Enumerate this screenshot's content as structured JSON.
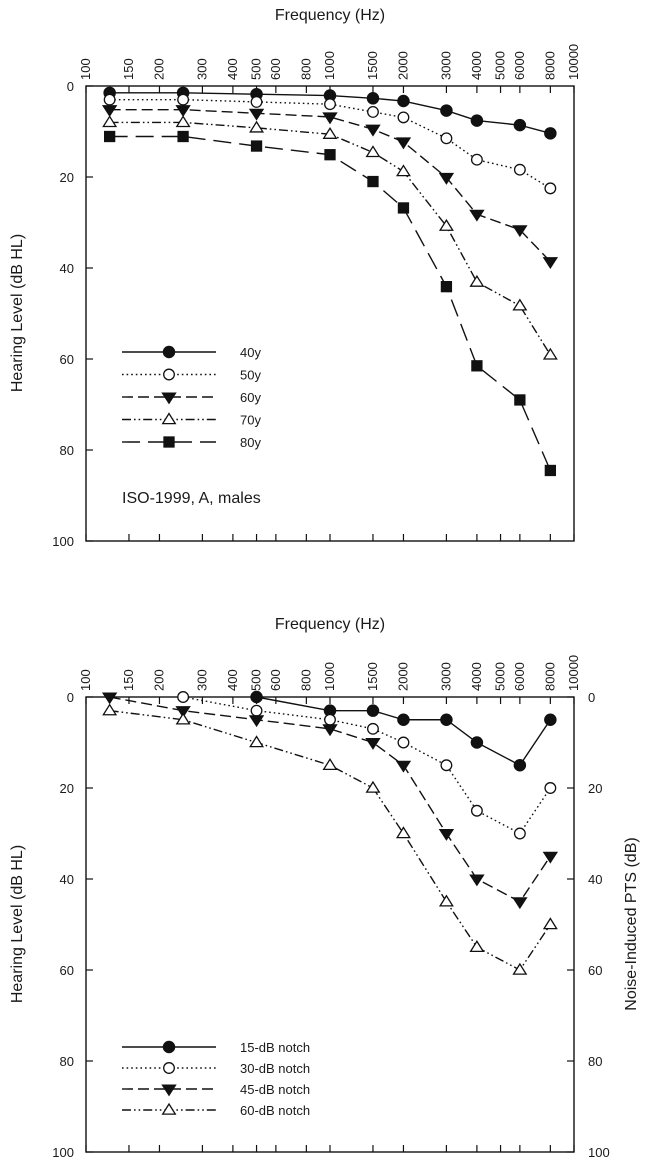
{
  "chart_data": [
    {
      "type": "line",
      "title": "",
      "xlabel": "Frequency (Hz)",
      "ylabel": "Hearing Level (dB HL)",
      "x_scale": "log",
      "xlim": [
        100,
        10000
      ],
      "ylim": [
        0,
        100
      ],
      "y_inverted": true,
      "x_tick_labels": [
        "100",
        "150",
        "200",
        "300",
        "400",
        "500",
        "600",
        "800",
        "1000",
        "1500",
        "2000",
        "3000",
        "4000",
        "5000",
        "6000",
        "8000",
        "10000"
      ],
      "y_tick_labels": [
        "0",
        "20",
        "40",
        "60",
        "80",
        "100"
      ],
      "x": [
        125,
        250,
        500,
        1000,
        1500,
        2000,
        3000,
        4000,
        6000,
        8000
      ],
      "legend_position": "lower-left",
      "annotation": "ISO-1999, A, males",
      "series": [
        {
          "name": "40y",
          "marker": "circle-filled",
          "dash": "solid",
          "values": [
            1.5,
            1.5,
            1.8,
            2.1,
            2.7,
            3.3,
            5.4,
            7.6,
            8.6,
            10.4
          ]
        },
        {
          "name": "50y",
          "marker": "circle-open",
          "dash": "dotted",
          "values": [
            3,
            3,
            3.5,
            4,
            5.7,
            6.9,
            11.5,
            16.2,
            18.4,
            22.5
          ]
        },
        {
          "name": "60y",
          "marker": "triangle-down-filled",
          "dash": "dashed",
          "values": [
            5.2,
            5.2,
            6,
            6.8,
            9.5,
            12.3,
            20.1,
            28.2,
            31.6,
            38.6
          ]
        },
        {
          "name": "70y",
          "marker": "triangle-up-open",
          "dash": "dash-dot-dot",
          "values": [
            8,
            8,
            9.2,
            10.6,
            14.6,
            18.8,
            30.8,
            43.1,
            48.3,
            59.1
          ]
        },
        {
          "name": "80y",
          "marker": "square-filled",
          "dash": "long-dash",
          "values": [
            11.1,
            11.1,
            13.2,
            15.1,
            21,
            26.8,
            44.1,
            61.5,
            69,
            84.5
          ]
        }
      ]
    },
    {
      "type": "line",
      "title": "",
      "xlabel": "Frequency (Hz)",
      "ylabel": "Hearing Level (dB HL)",
      "ylabel_right": "Noise-Induced PTS (dB)",
      "x_scale": "log",
      "xlim": [
        100,
        10000
      ],
      "ylim": [
        0,
        100
      ],
      "y_inverted": true,
      "x_tick_labels": [
        "100",
        "150",
        "200",
        "300",
        "400",
        "500",
        "600",
        "800",
        "1000",
        "1500",
        "2000",
        "3000",
        "4000",
        "5000",
        "6000",
        "8000",
        "10000"
      ],
      "y_tick_labels": [
        "0",
        "20",
        "40",
        "60",
        "80",
        "100"
      ],
      "legend_position": "lower-left",
      "series": [
        {
          "name": "15-dB notch",
          "marker": "circle-filled",
          "dash": "solid",
          "x": [
            500,
            1000,
            1500,
            2000,
            3000,
            4000,
            6000,
            8000
          ],
          "values": [
            0,
            3,
            3,
            5,
            5,
            10,
            15,
            5
          ]
        },
        {
          "name": "30-dB notch",
          "marker": "circle-open",
          "dash": "dotted",
          "x": [
            250,
            500,
            1000,
            1500,
            2000,
            3000,
            4000,
            6000,
            8000
          ],
          "values": [
            0,
            3,
            5,
            7,
            10,
            15,
            25,
            30,
            20
          ]
        },
        {
          "name": "45-dB notch",
          "marker": "triangle-down-filled",
          "dash": "dashed",
          "x": [
            125,
            250,
            500,
            1000,
            1500,
            2000,
            3000,
            4000,
            6000,
            8000
          ],
          "values": [
            0,
            3,
            5,
            7,
            10,
            15,
            30,
            40,
            45,
            35
          ]
        },
        {
          "name": "60-dB notch",
          "marker": "triangle-up-open",
          "dash": "dash-dot-dot",
          "x": [
            125,
            250,
            500,
            1000,
            1500,
            2000,
            3000,
            4000,
            6000,
            8000
          ],
          "values": [
            3,
            5,
            10,
            15,
            20,
            30,
            45,
            55,
            60,
            50
          ]
        }
      ]
    }
  ]
}
